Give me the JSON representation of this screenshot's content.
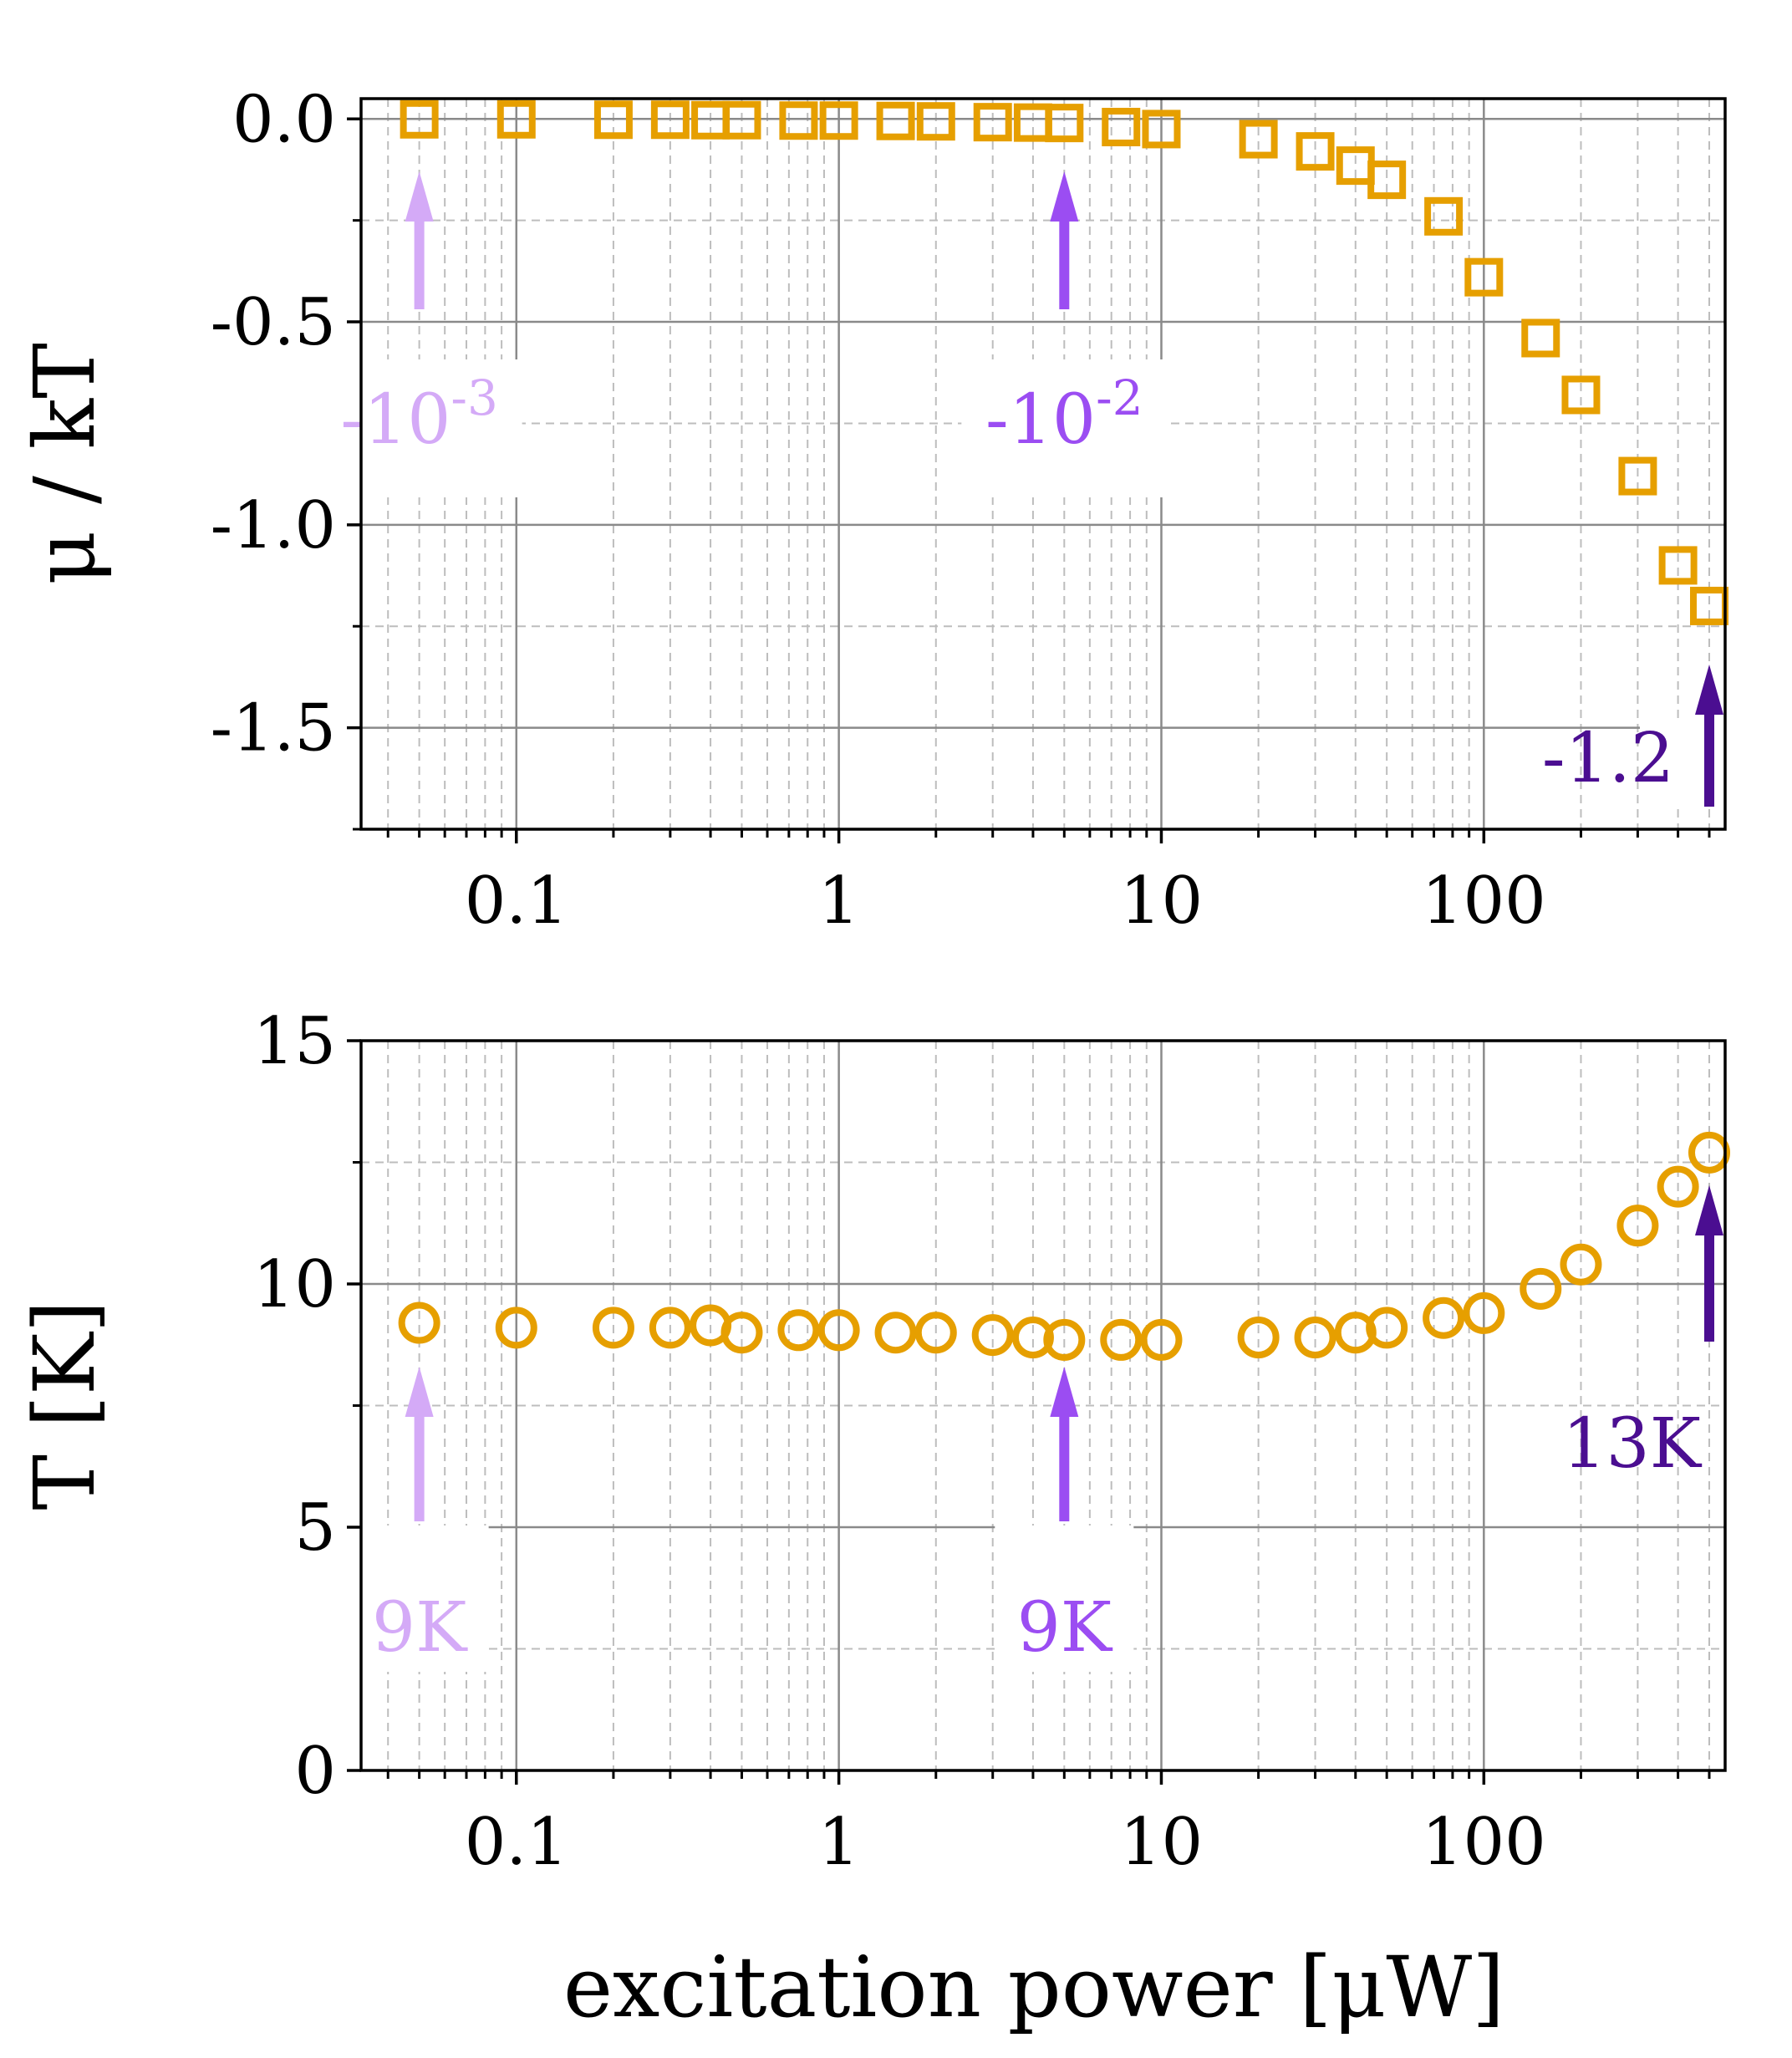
{
  "chart_data": [
    {
      "type": "scatter",
      "panel": "top",
      "ylabel": "μ / kT",
      "xlabel": "",
      "xscale": "log",
      "xlim": [
        0.033,
        560
      ],
      "ylim": [
        -1.75,
        0.05
      ],
      "yticks": [
        0.0,
        -0.5,
        -1.0,
        -1.5
      ],
      "ytick_labels": [
        "0.0",
        "-0.5",
        "-1.0",
        "-1.5"
      ],
      "xtick_labels": [
        "0.1",
        "1",
        "10",
        "100"
      ],
      "xticks": [
        0.1,
        1,
        10,
        100
      ],
      "grid": true,
      "marker": "square",
      "color": "#E69F00",
      "x": [
        0.05,
        0.1,
        0.2,
        0.3,
        0.4,
        0.5,
        0.75,
        1,
        1.5,
        2,
        3,
        4,
        5,
        7.5,
        10,
        20,
        30,
        40,
        50,
        75,
        100,
        150,
        200,
        300,
        400,
        500
      ],
      "y": [
        -0.001,
        -0.001,
        -0.002,
        -0.002,
        -0.003,
        -0.003,
        -0.004,
        -0.004,
        -0.005,
        -0.006,
        -0.008,
        -0.009,
        -0.01,
        -0.02,
        -0.025,
        -0.05,
        -0.08,
        -0.115,
        -0.15,
        -0.24,
        -0.39,
        -0.54,
        -0.68,
        -0.88,
        -1.1,
        -1.2
      ],
      "annotations": [
        {
          "text_base": "-10",
          "text_exp": "-3",
          "x": 0.05,
          "color": "#D4AAF7"
        },
        {
          "text_base": "-10",
          "text_exp": "-2",
          "x": 5,
          "color": "#9B4DF2"
        },
        {
          "text": "-1.2",
          "x": 500,
          "color": "#4B0E91"
        }
      ]
    },
    {
      "type": "scatter",
      "panel": "bottom",
      "ylabel": "T [K]",
      "xlabel": "excitation power [μW]",
      "xscale": "log",
      "xlim": [
        0.033,
        560
      ],
      "ylim": [
        0,
        15
      ],
      "yticks": [
        0,
        5,
        10,
        15
      ],
      "ytick_labels": [
        "0",
        "5",
        "10",
        "15"
      ],
      "xtick_labels": [
        "0.1",
        "1",
        "10",
        "100"
      ],
      "xticks": [
        0.1,
        1,
        10,
        100
      ],
      "grid": true,
      "marker": "circle",
      "color": "#E69F00",
      "x": [
        0.05,
        0.1,
        0.2,
        0.3,
        0.4,
        0.5,
        0.75,
        1,
        1.5,
        2,
        3,
        4,
        5,
        7.5,
        10,
        20,
        30,
        40,
        50,
        75,
        100,
        150,
        200,
        300,
        400,
        500
      ],
      "y": [
        9.2,
        9.1,
        9.1,
        9.1,
        9.15,
        9.0,
        9.05,
        9.05,
        9.0,
        9.0,
        8.95,
        8.9,
        8.85,
        8.85,
        8.85,
        8.9,
        8.9,
        9.0,
        9.1,
        9.3,
        9.4,
        9.9,
        10.4,
        11.2,
        12.0,
        12.7
      ],
      "annotations": [
        {
          "text": "9K",
          "x": 0.05,
          "color": "#D4AAF7"
        },
        {
          "text": "9K",
          "x": 5,
          "color": "#9B4DF2"
        },
        {
          "text": "13K",
          "x": 500,
          "color": "#4B0E91"
        }
      ]
    }
  ]
}
